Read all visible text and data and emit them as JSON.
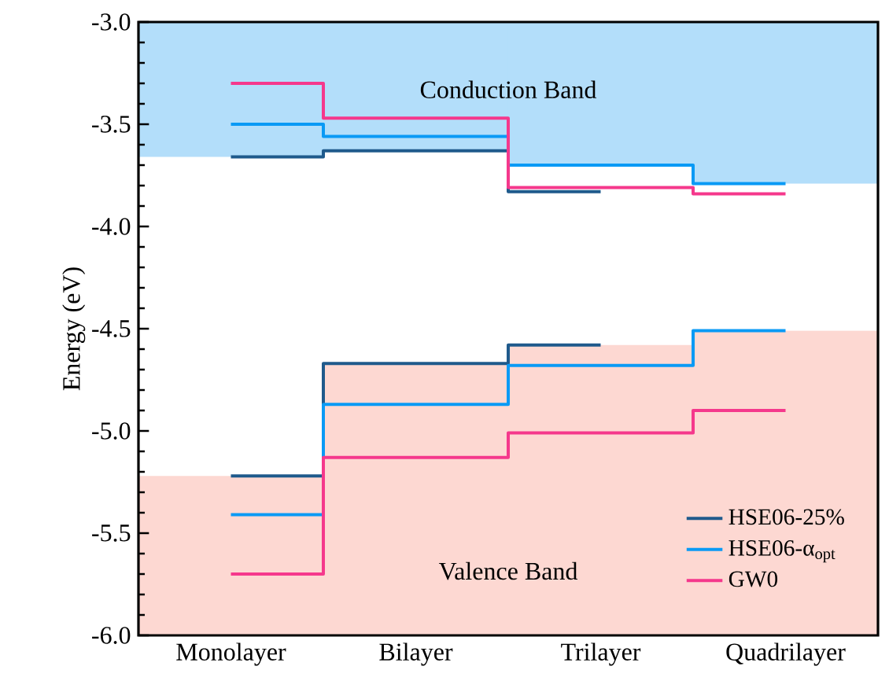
{
  "chart_data": {
    "type": "step",
    "ylabel": "Energy (eV)",
    "categories": [
      "Monolayer",
      "Bilayer",
      "Trilayer",
      "Quadrilayer"
    ],
    "series": [
      {
        "type": "bar",
        "color": "#b3defa",
        "base": [
          -3.66,
          -3.63,
          -3.7,
          -3.79
        ],
        "values": [
          0.66,
          0.63,
          0.7,
          0.79
        ]
      },
      {
        "type": "bar",
        "color": "#fdd8d2",
        "base": [
          -6.0,
          -6.0,
          -6.0,
          -6.0
        ],
        "values": [
          0.78,
          1.33,
          1.42,
          1.49
        ]
      },
      {
        "name": "HSE06-25%",
        "color": "#1f5a8c",
        "values": [
          -3.66,
          -3.63,
          -3.83,
          null
        ]
      },
      {
        "name": "HSE06-α$_{opt}$",
        "color": "#0a9af5",
        "values": [
          -3.5,
          -3.56,
          -3.7,
          -3.79
        ]
      },
      {
        "name": "GW0",
        "color": "#f5388c",
        "values": [
          -3.3,
          -3.47,
          -3.81,
          -3.84
        ]
      },
      {
        "color": "#1f5a8c",
        "values": [
          -5.22,
          -4.67,
          -4.58,
          null
        ]
      },
      {
        "color": "#0a9af5",
        "values": [
          -5.41,
          -4.87,
          -4.68,
          -4.51
        ]
      },
      {
        "color": "#f5388c",
        "values": [
          -5.7,
          -5.13,
          -5.01,
          -4.9
        ]
      }
    ],
    "annotations": [
      "Conduction Band",
      "Valence Band"
    ],
    "ylim": [
      -6.0,
      -3.0
    ],
    "yticks": [
      {
        "value": -6.0,
        "label": "-6.0"
      },
      {
        "value": -5.5,
        "label": "-5.5"
      },
      {
        "value": -5.0,
        "label": "-5.0"
      },
      {
        "value": -4.5,
        "label": "-4.5"
      },
      {
        "value": -4.0,
        "label": "-4.0"
      },
      {
        "value": -3.5,
        "label": "-3.5"
      },
      {
        "value": -3.0,
        "label": "-3.0"
      }
    ],
    "legend": "bottom right",
    "grid": false
  }
}
